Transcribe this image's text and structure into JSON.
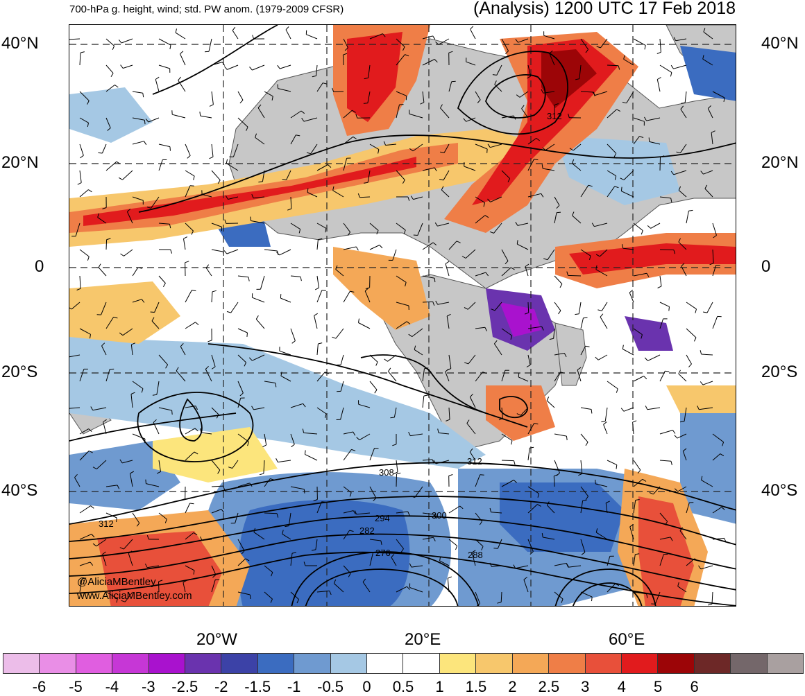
{
  "header": {
    "left_title": "700-hPa g. height, wind; std. PW anom. (1979-2009 CFSR)",
    "right_title": "(Analysis) 1200 UTC 17 Feb 2018"
  },
  "axes": {
    "lat_labels": [
      "40°N",
      "20°N",
      "0",
      "20°S",
      "40°S"
    ],
    "lon_labels": [
      "20°W",
      "20°E",
      "60°E"
    ]
  },
  "contour_labels": [
    "312",
    "312",
    "308",
    "300",
    "294",
    "288",
    "282",
    "276",
    "312"
  ],
  "credit": {
    "handle": "@AliciaMBentley",
    "site": "www.AliciaMBentley.com"
  },
  "colorbar": {
    "colors": [
      "#ecbde9",
      "#e98ee6",
      "#e05ee0",
      "#c637d6",
      "#a912ce",
      "#6a33ae",
      "#3c42a7",
      "#3b6cc0",
      "#6f9ad0",
      "#a5c8e4",
      "#ffffff",
      "#ffffff",
      "#fce57c",
      "#f7c76c",
      "#f4a857",
      "#ef7e47",
      "#e8503a",
      "#e11b1d",
      "#9c0507",
      "#6d2827",
      "#74676a",
      "#a9a0a0"
    ],
    "labels": [
      "-6",
      "-5",
      "-4",
      "-3",
      "-2.5",
      "-2",
      "-1.5",
      "-1",
      "-0.5",
      "0",
      "0.5",
      "1",
      "1.5",
      "2",
      "2.5",
      "3",
      "4",
      "5",
      "6"
    ]
  }
}
